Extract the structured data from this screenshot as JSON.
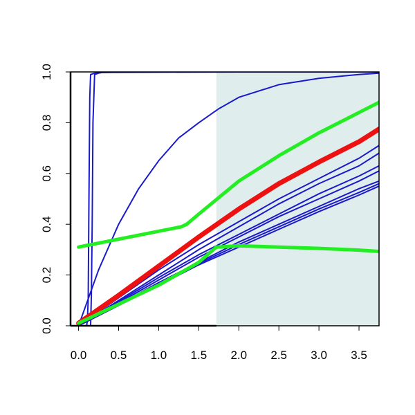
{
  "chart_data": {
    "type": "line",
    "title": "",
    "xlabel": "",
    "ylabel": "",
    "xlim": [
      -0.1,
      3.75
    ],
    "ylim": [
      0,
      1
    ],
    "x_ticks": [
      0,
      0.5,
      1,
      1.5,
      2,
      2.5,
      3,
      3.5
    ],
    "x_tick_labels": [
      "0.0",
      "0.5",
      "1.0",
      "1.5",
      "2.0",
      "2.5",
      "3.0",
      "3.5"
    ],
    "y_ticks": [
      0,
      0.2,
      0.4,
      0.6,
      0.8,
      1.0
    ],
    "y_tick_labels": [
      "0.0",
      "0.2",
      "0.4",
      "0.6",
      "0.8",
      "1.0"
    ],
    "grid": false,
    "shaded_region": {
      "x_from": 1.72,
      "x_to": 3.75,
      "color": "#e0eded"
    },
    "colors": {
      "blue": "#1a1acc",
      "red": "#ee1111",
      "green": "#22ee22"
    },
    "series": [
      {
        "color": "blue",
        "width": 2,
        "x": [
          0,
          0.15,
          0.16,
          0.17,
          0.18,
          0.2,
          0.25,
          0.3,
          1,
          2,
          3,
          3.75
        ],
        "y": [
          0,
          0,
          0.12,
          0.4,
          0.8,
          0.99,
          0.995,
          0.998,
          0.999,
          1,
          1,
          1
        ]
      },
      {
        "color": "blue",
        "width": 2,
        "x": [
          0,
          0.25,
          0.5,
          0.75,
          1,
          1.25,
          1.5,
          1.75,
          2,
          2.5,
          3,
          3.5,
          3.75
        ],
        "y": [
          0,
          0.22,
          0.4,
          0.54,
          0.65,
          0.74,
          0.8,
          0.855,
          0.9,
          0.95,
          0.975,
          0.99,
          0.995
        ]
      },
      {
        "color": "blue",
        "width": 2,
        "x": [
          0.1,
          0.11,
          0.12,
          0.13,
          0.14,
          0.15,
          0.2,
          0.3,
          0.5,
          1,
          2,
          3,
          3.75
        ],
        "y": [
          0,
          0.02,
          0.1,
          0.5,
          0.9,
          0.99,
          0.995,
          0.998,
          0.999,
          1,
          1,
          1,
          1
        ]
      },
      {
        "color": "blue",
        "width": 2,
        "x": [
          0,
          0.5,
          1,
          1.5,
          2,
          2.5,
          3,
          3.5,
          3.75
        ],
        "y": [
          0,
          0.11,
          0.22,
          0.32,
          0.41,
          0.5,
          0.58,
          0.66,
          0.71
        ]
      },
      {
        "color": "blue",
        "width": 2,
        "x": [
          0,
          0.5,
          1,
          1.5,
          2,
          2.5,
          3,
          3.5,
          3.75
        ],
        "y": [
          0,
          0.1,
          0.2,
          0.3,
          0.39,
          0.48,
          0.56,
          0.63,
          0.68
        ]
      },
      {
        "color": "blue",
        "width": 2,
        "x": [
          0,
          0.5,
          1,
          1.5,
          2,
          2.5,
          3,
          3.5,
          3.75
        ],
        "y": [
          0,
          0.095,
          0.19,
          0.28,
          0.36,
          0.44,
          0.52,
          0.59,
          0.63
        ]
      },
      {
        "color": "blue",
        "width": 2,
        "x": [
          0,
          0.5,
          1,
          1.5,
          2,
          2.5,
          3,
          3.5,
          3.75
        ],
        "y": [
          0,
          0.09,
          0.18,
          0.27,
          0.35,
          0.43,
          0.5,
          0.57,
          0.61
        ]
      },
      {
        "color": "blue",
        "width": 2,
        "x": [
          0,
          0.5,
          1,
          1.5,
          2,
          2.5,
          3,
          3.5,
          3.75
        ],
        "y": [
          0,
          0.085,
          0.17,
          0.25,
          0.33,
          0.4,
          0.47,
          0.54,
          0.57
        ]
      },
      {
        "color": "blue",
        "width": 2,
        "x": [
          0,
          0.5,
          1,
          1.5,
          2,
          2.5,
          3,
          3.5,
          3.75
        ],
        "y": [
          0,
          0.083,
          0.165,
          0.245,
          0.32,
          0.39,
          0.46,
          0.525,
          0.56
        ]
      },
      {
        "color": "blue",
        "width": 2,
        "x": [
          0,
          0.5,
          1,
          1.5,
          2,
          2.5,
          3,
          3.5,
          3.75
        ],
        "y": [
          0,
          0.08,
          0.16,
          0.24,
          0.31,
          0.38,
          0.45,
          0.515,
          0.55
        ]
      },
      {
        "color": "red",
        "width": 7,
        "x": [
          0,
          0.5,
          1,
          1.5,
          2,
          2.5,
          3,
          3.5,
          3.75
        ],
        "y": [
          0.01,
          0.12,
          0.235,
          0.35,
          0.46,
          0.56,
          0.645,
          0.725,
          0.775
        ]
      },
      {
        "color": "green",
        "width": 5,
        "x": [
          0,
          1.28,
          1.35,
          1.5,
          2,
          2.5,
          3,
          3.5,
          3.75
        ],
        "y": [
          0.31,
          0.39,
          0.4,
          0.44,
          0.57,
          0.67,
          0.76,
          0.84,
          0.88
        ]
      },
      {
        "color": "green",
        "width": 5,
        "x": [
          0,
          0.5,
          1,
          1.5,
          1.72,
          2,
          2.5,
          3,
          3.5,
          3.75
        ],
        "y": [
          0.01,
          0.085,
          0.16,
          0.25,
          0.31,
          0.315,
          0.31,
          0.305,
          0.298,
          0.293
        ]
      }
    ]
  }
}
